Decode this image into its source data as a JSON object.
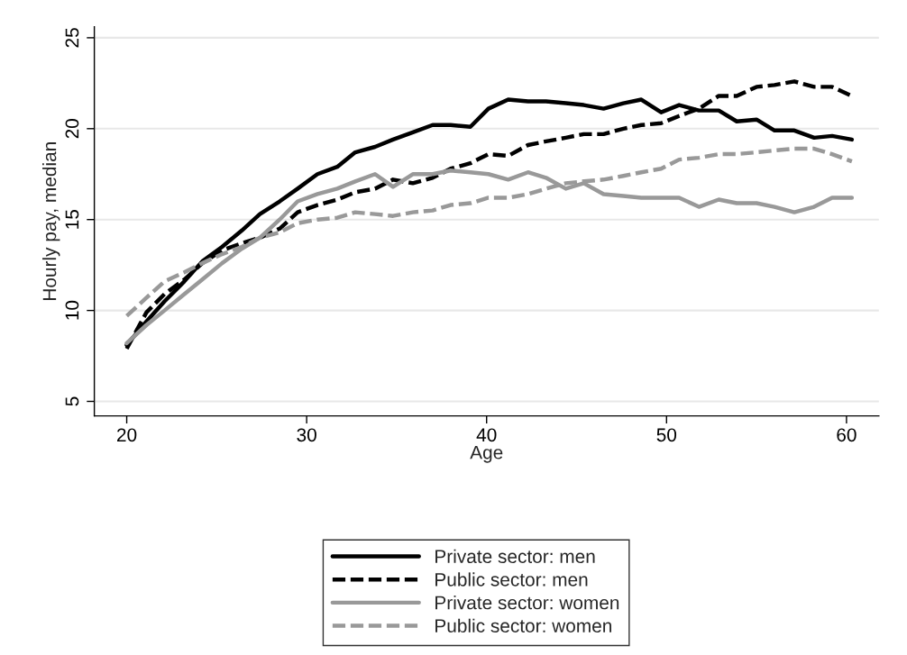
{
  "chart_data": {
    "type": "line",
    "xlabel": "Age",
    "ylabel": "Hourly pay, median",
    "x": [
      20.0,
      21.1,
      22.1,
      23.2,
      24.2,
      25.3,
      26.4,
      27.4,
      28.5,
      29.5,
      30.6,
      31.7,
      32.7,
      33.8,
      34.8,
      35.9,
      37.0,
      38.0,
      39.1,
      40.1,
      41.2,
      42.3,
      43.3,
      44.4,
      45.4,
      46.5,
      47.6,
      48.6,
      49.7,
      50.7,
      51.8,
      52.9,
      53.9,
      55.0,
      56.0,
      57.1,
      58.2,
      59.2,
      60.3
    ],
    "series": [
      {
        "name": "Private sector: men",
        "color": "#000000",
        "line_style": "solid",
        "values": [
          8.1,
          9.4,
          10.5,
          11.6,
          12.7,
          13.5,
          14.4,
          15.3,
          16.0,
          16.7,
          17.5,
          17.9,
          18.7,
          19.0,
          19.4,
          19.8,
          20.2,
          20.2,
          20.1,
          21.1,
          21.6,
          21.5,
          21.5,
          21.4,
          21.3,
          21.1,
          21.4,
          21.6,
          20.9,
          21.3,
          21.0,
          21.0,
          20.4,
          20.5,
          19.9,
          19.9,
          19.5,
          19.6,
          19.4
        ]
      },
      {
        "name": "Public sector: men",
        "color": "#000000",
        "line_style": "dashed",
        "values": [
          7.9,
          9.9,
          10.9,
          11.7,
          12.6,
          13.3,
          13.7,
          14.0,
          14.5,
          15.4,
          15.8,
          16.1,
          16.5,
          16.7,
          17.2,
          17.0,
          17.3,
          17.8,
          18.1,
          18.6,
          18.5,
          19.1,
          19.3,
          19.5,
          19.7,
          19.7,
          20.0,
          20.2,
          20.3,
          20.7,
          21.1,
          21.8,
          21.8,
          22.3,
          22.4,
          22.6,
          22.3,
          22.3,
          21.8
        ]
      },
      {
        "name": "Private sector: women",
        "color": "#999999",
        "line_style": "solid",
        "values": [
          8.2,
          9.2,
          10.0,
          10.9,
          11.7,
          12.6,
          13.4,
          14.0,
          15.0,
          16.0,
          16.4,
          16.7,
          17.1,
          17.5,
          16.8,
          17.5,
          17.5,
          17.7,
          17.6,
          17.5,
          17.2,
          17.6,
          17.3,
          16.7,
          17.0,
          16.4,
          16.3,
          16.2,
          16.2,
          16.2,
          15.7,
          16.1,
          15.9,
          15.9,
          15.7,
          15.4,
          15.7,
          16.2,
          16.2
        ]
      },
      {
        "name": "Public sector: women",
        "color": "#999999",
        "line_style": "dashed",
        "values": [
          9.7,
          10.7,
          11.6,
          12.1,
          12.6,
          13.1,
          13.5,
          14.0,
          14.3,
          14.8,
          15.0,
          15.1,
          15.4,
          15.3,
          15.2,
          15.4,
          15.5,
          15.8,
          15.9,
          16.2,
          16.2,
          16.4,
          16.7,
          17.0,
          17.1,
          17.2,
          17.4,
          17.6,
          17.8,
          18.3,
          18.4,
          18.6,
          18.6,
          18.7,
          18.8,
          18.9,
          18.9,
          18.6,
          18.2
        ]
      }
    ],
    "xlim": [
      18.2,
      61.8
    ],
    "xticks": [
      20,
      30,
      40,
      50,
      60
    ],
    "ylim": [
      4.2,
      25.6
    ],
    "yticks": [
      5,
      10,
      15,
      20,
      25
    ],
    "grid": "y",
    "legend": "bottom",
    "marker": "none"
  }
}
